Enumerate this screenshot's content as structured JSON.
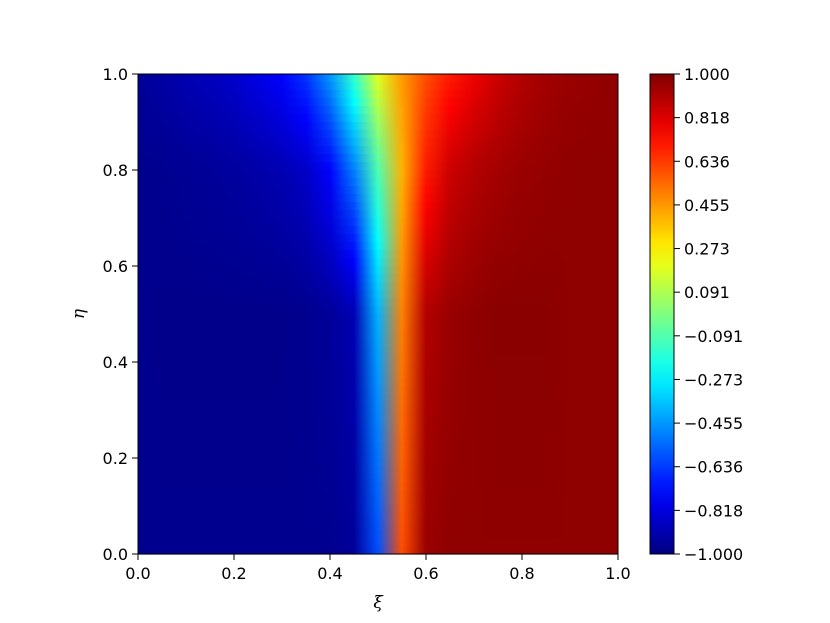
{
  "chart_data": {
    "type": "heatmap",
    "title": "",
    "xlabel": "ξ",
    "ylabel": "η",
    "xlim": [
      0.0,
      1.0
    ],
    "ylim": [
      0.0,
      1.0
    ],
    "grid": false,
    "colormap": "jet",
    "x_ticks": [
      "0.0",
      "0.2",
      "0.4",
      "0.6",
      "0.8",
      "1.0"
    ],
    "y_ticks": [
      "0.0",
      "0.2",
      "0.4",
      "0.6",
      "0.8",
      "1.0"
    ],
    "colorbar": {
      "min": -1.0,
      "max": 1.0,
      "ticks": [
        "−1.000",
        "−0.818",
        "−0.636",
        "−0.455",
        "−0.273",
        "−0.091",
        "0.091",
        "0.273",
        "0.455",
        "0.636",
        "0.818",
        "1.000"
      ]
    },
    "field_description": "approx. value -1 for ξ < 0.5 and +1 for ξ > 0.5; transition layer widens near η = 1",
    "rows": [
      {
        "eta": 0.0,
        "values": [
          -0.97,
          -0.97,
          -0.97,
          -0.97,
          -0.97,
          -0.97,
          -0.97,
          -0.97,
          -0.97,
          -0.95,
          -0.6,
          0.6,
          0.95,
          0.97,
          0.97,
          0.97,
          0.97,
          0.97,
          0.97,
          0.97,
          0.97
        ]
      },
      {
        "eta": 0.5,
        "values": [
          -0.97,
          -0.98,
          -0.98,
          -0.98,
          -0.98,
          -0.98,
          -0.98,
          -0.97,
          -0.95,
          -0.9,
          -0.4,
          0.5,
          0.9,
          0.95,
          0.97,
          0.98,
          0.98,
          0.98,
          0.97,
          0.97,
          0.97
        ]
      },
      {
        "eta": 0.8,
        "values": [
          -0.97,
          -0.97,
          -0.96,
          -0.95,
          -0.94,
          -0.92,
          -0.9,
          -0.86,
          -0.75,
          -0.5,
          -0.1,
          0.4,
          0.7,
          0.85,
          0.9,
          0.93,
          0.95,
          0.96,
          0.97,
          0.97,
          0.97
        ]
      },
      {
        "eta": 1.0,
        "values": [
          -0.95,
          -0.93,
          -0.9,
          -0.88,
          -0.85,
          -0.8,
          -0.75,
          -0.65,
          -0.45,
          -0.15,
          0.2,
          0.45,
          0.6,
          0.7,
          0.78,
          0.85,
          0.9,
          0.93,
          0.95,
          0.96,
          0.97
        ]
      }
    ]
  }
}
